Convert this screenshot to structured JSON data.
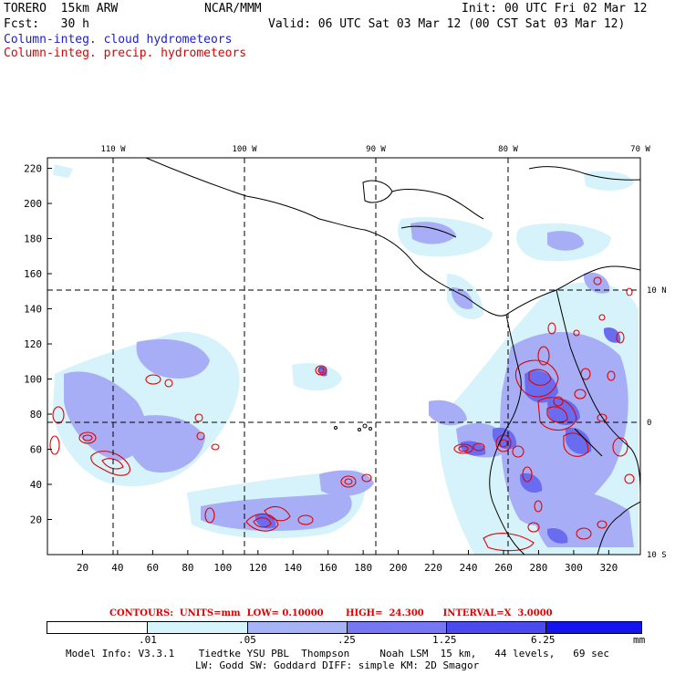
{
  "header": {
    "model": "TORERO  15km ARW",
    "org": "NCAR/MMM",
    "init": "Init: 00 UTC Fri 02 Mar 12",
    "fcst": "Fcst:   30 h",
    "valid": "Valid: 06 UTC Sat 03 Mar 12 (00 CST Sat 03 Mar 12)",
    "field1": "Column-integ. cloud hydrometeors",
    "field2": "Column-integ. precip. hydrometeors"
  },
  "map": {
    "lon_labels": [
      "110 W",
      "100 W",
      "90 W",
      "80 W",
      "70 W"
    ],
    "lat_labels": [
      "10 N",
      "0",
      "10 S"
    ],
    "y_ticks": [
      "220",
      "200",
      "180",
      "160",
      "140",
      "120",
      "100",
      "80",
      "60",
      "40",
      "20"
    ],
    "x_ticks": [
      "20",
      "40",
      "60",
      "80",
      "100",
      "120",
      "140",
      "160",
      "180",
      "200",
      "220",
      "240",
      "260",
      "280",
      "300",
      "320"
    ],
    "colors": {
      "cloud_light": "#d4f0fc",
      "cloud_mid": "#a8aef6",
      "cloud_dark": "#6a6cf0",
      "precip": "#e00000",
      "coast": "#000000"
    }
  },
  "contours": {
    "label": "CONTOURS:  UNITS=mm  LOW= 0.10000       HIGH=  24.300      INTERVAL=X  3.0000"
  },
  "colorbar": {
    "labels": [
      ".01",
      ".05",
      ".25",
      "1.25",
      "6.25"
    ],
    "unit": "mm",
    "colors": [
      "#ffffff",
      "#d6f4fb",
      "#a7b3f7",
      "#7777f4",
      "#4a4aef",
      "#1414ee"
    ]
  },
  "footer": {
    "line1": "Model Info: V3.3.1    Tiedtke YSU PBL  Thompson     Noah LSM  15 km,   44 levels,   69 sec",
    "line2": "LW: Godd SW: Goddard DIFF: simple KM: 2D Smagor"
  }
}
